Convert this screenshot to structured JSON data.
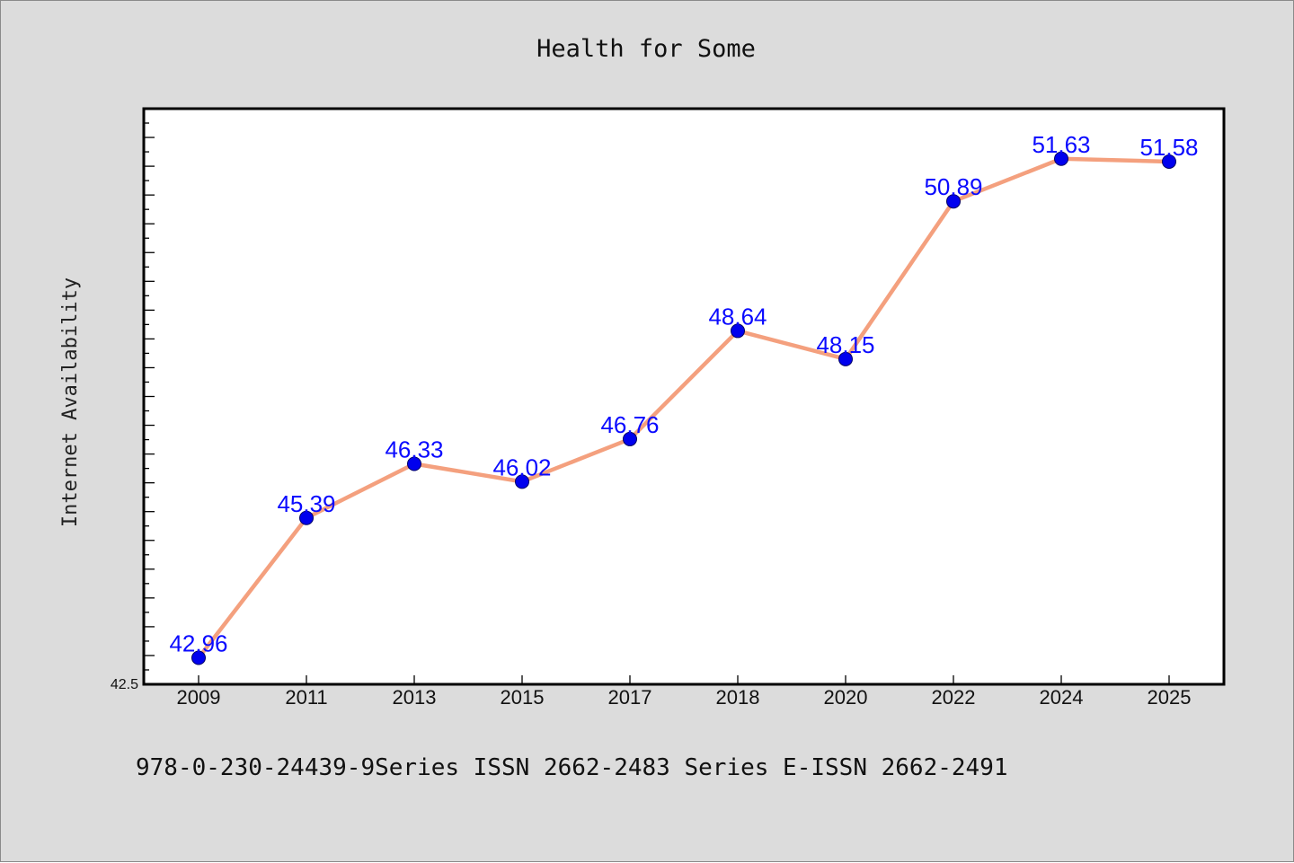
{
  "chart_data": {
    "type": "line",
    "title": "Health for Some",
    "xlabel": "",
    "ylabel": "Internet Availability",
    "x": [
      "2009",
      "2011",
      "2013",
      "2015",
      "2017",
      "2018",
      "2020",
      "2022",
      "2024",
      "2025"
    ],
    "series": [
      {
        "values": [
          42.96,
          45.39,
          46.33,
          46.02,
          46.76,
          48.64,
          48.15,
          50.89,
          51.63,
          51.58
        ],
        "labels": [
          "42.96",
          "45.39",
          "46.33",
          "46.02",
          "46.76",
          "48.64",
          "48.15",
          "50.89",
          "51.63",
          "51.58"
        ]
      }
    ],
    "ylim": [
      42.5,
      52.5
    ],
    "yticks_labeled": [
      "42.5"
    ],
    "grid": false,
    "line_color": "#f4a07e",
    "marker_color": "#0000ee",
    "label_color": "#0a0aff"
  },
  "footer": {
    "text": "978-0-230-24439-9Series ISSN 2662-2483 Series E-ISSN 2662-2491"
  },
  "colors": {
    "background": "#dcdcdc",
    "plot_background": "#ffffff"
  }
}
